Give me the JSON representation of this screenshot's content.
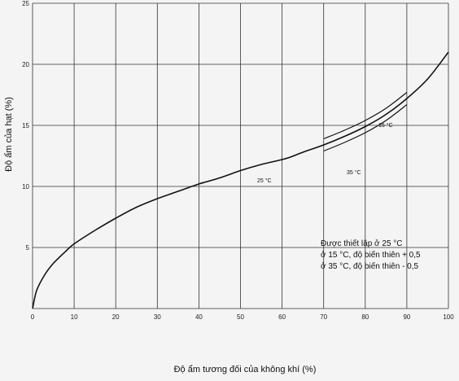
{
  "chart_data": {
    "type": "line",
    "title": "",
    "xlabel": "Độ ẩm tương đối của không khí (%)",
    "ylabel": "Độ ẩm của hạt (%)",
    "xlim": [
      0,
      100
    ],
    "ylim": [
      0,
      25
    ],
    "x_ticks": [
      "0",
      "10",
      "20",
      "30",
      "40",
      "50",
      "60",
      "70",
      "80",
      "90",
      "100"
    ],
    "y_ticks": [
      "5",
      "10",
      "15",
      "20",
      "25"
    ],
    "grid": true,
    "series": [
      {
        "name": "",
        "x": [
          0,
          1,
          3,
          5,
          8,
          10,
          15,
          20,
          25,
          30,
          35,
          40,
          45,
          50,
          55,
          60,
          62,
          65,
          70,
          75,
          80,
          85,
          90,
          95,
          100
        ],
        "y": [
          0,
          1.5,
          2.8,
          3.7,
          4.7,
          5.3,
          6.4,
          7.4,
          8.3,
          9.0,
          9.6,
          10.2,
          10.7,
          11.3,
          11.8,
          12.2,
          12.4,
          12.8,
          13.4,
          14.1,
          14.9,
          15.9,
          17.2,
          18.8,
          21.0
        ]
      }
    ],
    "bands": [
      {
        "name": "",
        "x": [
          70,
          75,
          80,
          85,
          90
        ],
        "y": [
          13.9,
          14.6,
          15.4,
          16.4,
          17.7
        ]
      },
      {
        "name": "",
        "x": [
          70,
          75,
          80,
          85,
          90
        ],
        "y": [
          12.9,
          13.6,
          14.4,
          15.4,
          16.7
        ]
      }
    ],
    "annotations": {
      "label_25": "25 °C",
      "label_15": "15 °C",
      "label_35": "35 °C"
    },
    "note": {
      "line1": "Được thiết lập ở 25 °C",
      "line2": "ở 15 °C, độ biến thiên + 0,5",
      "line3": "ở 35 °C, độ biến thiên - 0,5"
    }
  }
}
